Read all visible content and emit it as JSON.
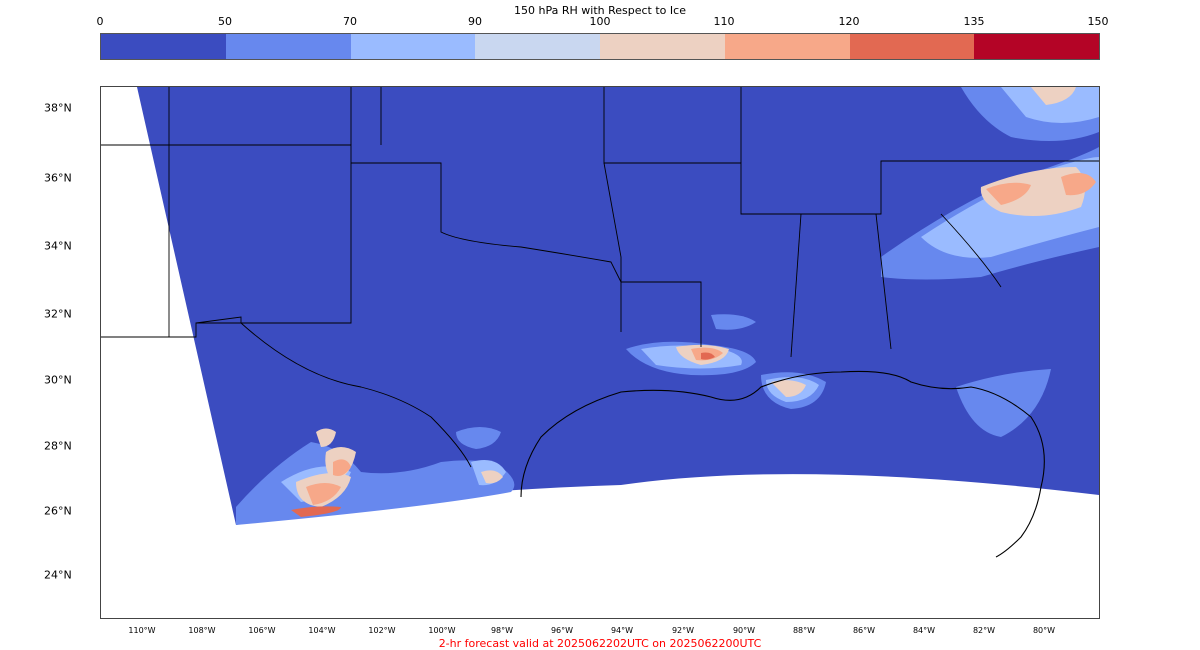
{
  "colorbar": {
    "title": "150 hPa RH with Respect to Ice",
    "ticks": [
      "0",
      "50",
      "70",
      "90",
      "100",
      "110",
      "120",
      "135",
      "150"
    ],
    "colors": [
      "#3b4cc0",
      "#6788ee",
      "#9abbff",
      "#c9d7f0",
      "#edd1c2",
      "#f7a889",
      "#e26952",
      "#b40426"
    ]
  },
  "map": {
    "lat_labels": [
      "38°N",
      "36°N",
      "34°N",
      "32°N",
      "30°N",
      "28°N",
      "26°N",
      "24°N"
    ],
    "lon_labels": [
      "110°W",
      "108°W",
      "106°W",
      "104°W",
      "102°W",
      "100°W",
      "98°W",
      "96°W",
      "94°W",
      "92°W",
      "90°W",
      "88°W",
      "86°W",
      "84°W",
      "82°W",
      "80°W"
    ],
    "background_color": "#3b4cc0"
  },
  "footer": {
    "text": "2-hr forecast valid at 2025062202UTC on 2025062200UTC",
    "color": "#ff0000"
  }
}
